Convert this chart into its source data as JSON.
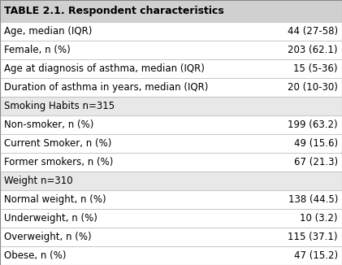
{
  "title": "TABLE 2.1. Respondent characteristics",
  "rows": [
    {
      "label": "Age, median (IQR)",
      "value": "44 (27-58)",
      "is_header": false,
      "bg": "#ffffff"
    },
    {
      "label": "Female, n (%)",
      "value": "203 (62.1)",
      "is_header": false,
      "bg": "#ffffff"
    },
    {
      "label": "Age at diagnosis of asthma, median (IQR)",
      "value": "15 (5-36)",
      "is_header": false,
      "bg": "#ffffff"
    },
    {
      "label": "Duration of asthma in years, median (IQR)",
      "value": "20 (10-30)",
      "is_header": false,
      "bg": "#ffffff"
    },
    {
      "label": "Smoking Habits n=315",
      "value": "",
      "is_header": true,
      "bg": "#e8e8e8"
    },
    {
      "label": "Non-smoker, n (%)",
      "value": "199 (63.2)",
      "is_header": false,
      "bg": "#ffffff"
    },
    {
      "label": "Current Smoker, n (%)",
      "value": "49 (15.6)",
      "is_header": false,
      "bg": "#ffffff"
    },
    {
      "label": "Former smokers, n (%)",
      "value": "67 (21.3)",
      "is_header": false,
      "bg": "#ffffff"
    },
    {
      "label": "Weight n=310",
      "value": "",
      "is_header": true,
      "bg": "#e8e8e8"
    },
    {
      "label": "Normal weight, n (%)",
      "value": "138 (44.5)",
      "is_header": false,
      "bg": "#ffffff"
    },
    {
      "label": "Underweight, n (%)",
      "value": "10 (3.2)",
      "is_header": false,
      "bg": "#ffffff"
    },
    {
      "label": "Overweight, n (%)",
      "value": "115 (37.1)",
      "is_header": false,
      "bg": "#ffffff"
    },
    {
      "label": "Obese, n (%)",
      "value": "47 (15.2)",
      "is_header": false,
      "bg": "#ffffff"
    }
  ],
  "title_bg": "#d0d0d0",
  "header_bg": "#e8e8e8",
  "row_bg": "#ffffff",
  "text_color": "#000000",
  "font_size": 8.5,
  "title_font_size": 9.0,
  "fig_width": 4.21,
  "fig_height": 3.26,
  "dpi": 100,
  "line_color": "#b0b0b0",
  "line_lw": 0.5
}
